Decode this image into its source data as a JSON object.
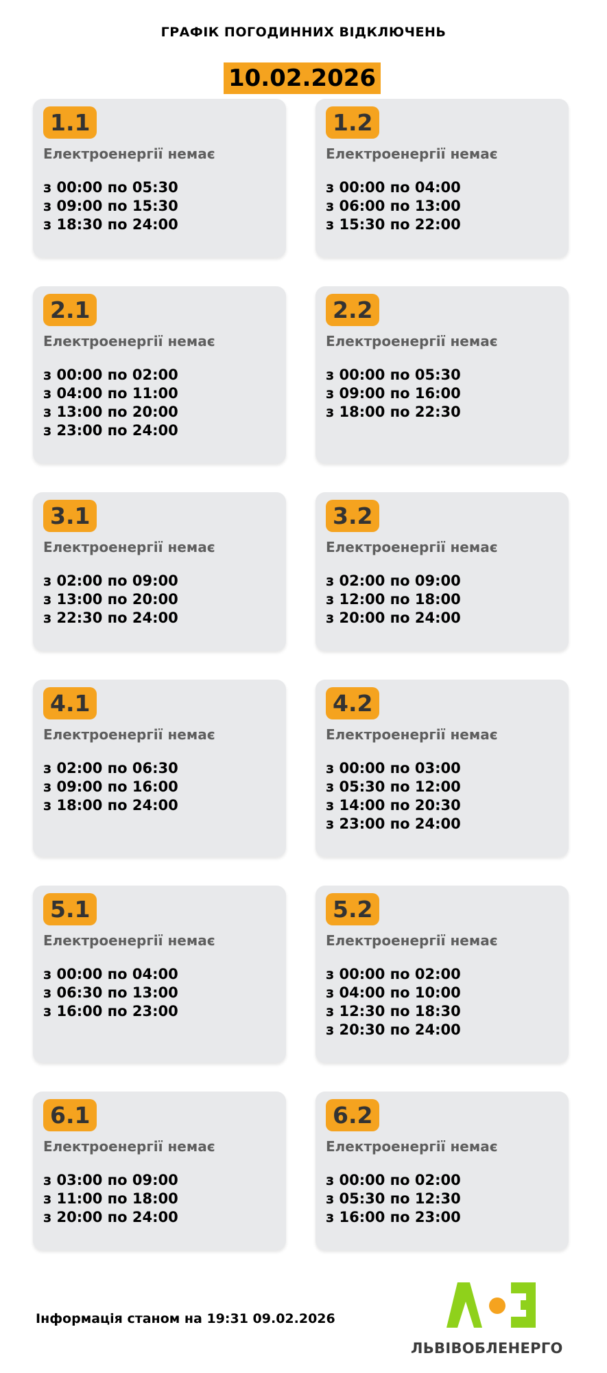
{
  "title": "ГРАФІК ПОГОДИННИХ ВІДКЛЮЧЕНЬ",
  "date": "10.02.2026",
  "colors": {
    "accent": "#f5a31f",
    "card_bg": "#e8e9eb",
    "logo_green": "#8fd11b",
    "logo_orange": "#f5a31f"
  },
  "groups": [
    {
      "id": "1.1",
      "status": "Електроенергії немає",
      "times": [
        "з 00:00 по 05:30",
        "з 09:00 по 15:30",
        "з 18:30 по 24:00"
      ]
    },
    {
      "id": "1.2",
      "status": "Електроенергії немає",
      "times": [
        "з 00:00 по 04:00",
        "з 06:00 по 13:00",
        "з 15:30 по 22:00"
      ]
    },
    {
      "id": "2.1",
      "status": "Електроенергії немає",
      "times": [
        "з 00:00 по 02:00",
        "з 04:00 по 11:00",
        "з 13:00 по 20:00",
        "з 23:00 по 24:00"
      ]
    },
    {
      "id": "2.2",
      "status": "Електроенергії немає",
      "times": [
        "з 00:00 по 05:30",
        "з 09:00 по 16:00",
        "з 18:00 по 22:30"
      ]
    },
    {
      "id": "3.1",
      "status": "Електроенергії немає",
      "times": [
        "з 02:00 по 09:00",
        "з 13:00 по 20:00",
        "з 22:30 по 24:00"
      ]
    },
    {
      "id": "3.2",
      "status": "Електроенергії немає",
      "times": [
        "з 02:00 по 09:00",
        "з 12:00 по 18:00",
        "з 20:00 по 24:00"
      ]
    },
    {
      "id": "4.1",
      "status": "Електроенергії немає",
      "times": [
        "з 02:00 по 06:30",
        "з 09:00 по 16:00",
        "з 18:00 по 24:00"
      ]
    },
    {
      "id": "4.2",
      "status": "Електроенергії немає",
      "times": [
        "з 00:00 по 03:00",
        "з 05:30 по 12:00",
        "з 14:00 по 20:30",
        "з 23:00 по 24:00"
      ]
    },
    {
      "id": "5.1",
      "status": "Електроенергії немає",
      "times": [
        "з 00:00 по 04:00",
        "з 06:30 по 13:00",
        "з 16:00 по 23:00"
      ]
    },
    {
      "id": "5.2",
      "status": "Електроенергії немає",
      "times": [
        "з 00:00 по 02:00",
        "з 04:00 по 10:00",
        "з 12:30 по 18:30",
        "з 20:30 по 24:00"
      ]
    },
    {
      "id": "6.1",
      "status": "Електроенергії немає",
      "times": [
        "з 03:00 по 09:00",
        "з 11:00 по 18:00",
        "з 20:00 по 24:00"
      ]
    },
    {
      "id": "6.2",
      "status": "Електроенергії немає",
      "times": [
        "з 00:00 по 02:00",
        "з 05:30 по 12:30",
        "з 16:00 по 23:00"
      ]
    }
  ],
  "footer": {
    "info": "Інформація станом на 19:31 09.02.2026"
  },
  "logo": {
    "brand": "ЛЬВІВОБЛЕНЕРГО"
  }
}
